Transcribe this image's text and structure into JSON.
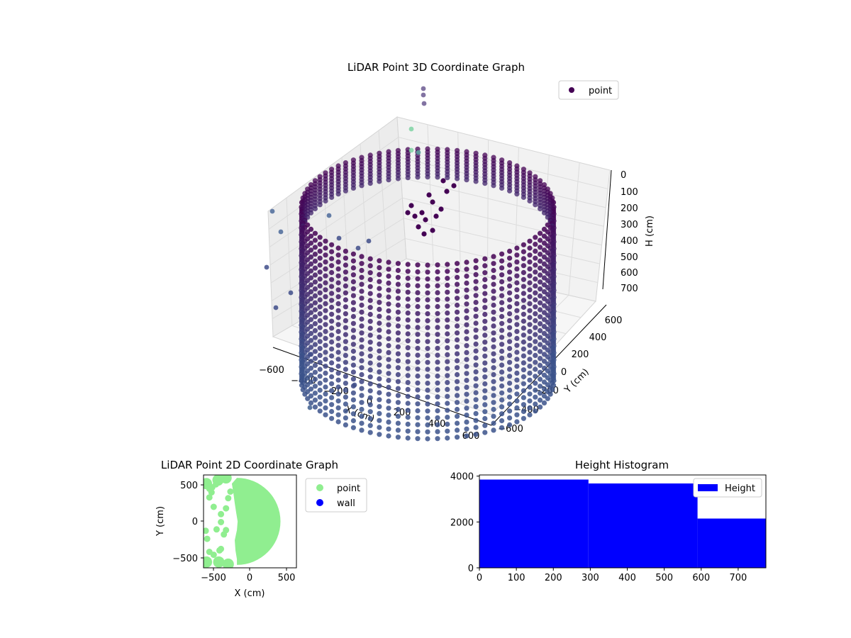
{
  "chart_data": [
    {
      "type": "scatter",
      "projection": "3d",
      "title": "LiDAR Point 3D Coordinate Graph",
      "xlabel": "X (cm)",
      "ylabel": "Y (cm)",
      "zlabel": "H (cm)",
      "x_ticks": [
        "−600",
        "−400",
        "−200",
        "0",
        "200",
        "400",
        "600"
      ],
      "y_ticks": [
        "−600",
        "−400",
        "−200",
        "0",
        "200",
        "400",
        "600"
      ],
      "z_ticks": [
        "0",
        "100",
        "200",
        "300",
        "400",
        "500",
        "600",
        "700"
      ],
      "xlim": [
        -600,
        600
      ],
      "ylim": [
        -600,
        600
      ],
      "zlim": [
        0,
        760
      ],
      "z_inverted": true,
      "legend": [
        {
          "label": "point",
          "color": "#440154"
        }
      ],
      "legend_position": "top-right",
      "grid": true,
      "colormap": "viridis",
      "ring_radius_cm": 600,
      "ring_height_cm": [
        0,
        760
      ],
      "colors": {
        "low": "#440154",
        "mid": "#3b528b",
        "high": "#7fd3a3"
      }
    },
    {
      "type": "scatter",
      "title": "LiDAR Point 2D Coordinate Graph",
      "xlabel": "X (cm)",
      "ylabel": "Y (cm)",
      "xlim": [
        -640,
        640
      ],
      "ylim": [
        -640,
        640
      ],
      "x_ticks": [
        "−500",
        "0",
        "500"
      ],
      "y_ticks": [
        "500",
        "0",
        "−500"
      ],
      "legend": [
        {
          "label": "point",
          "color": "#90ee90"
        },
        {
          "label": "wall",
          "color": "#0000ff"
        }
      ],
      "legend_position": "outside-right",
      "outliers": [
        {
          "x": -520,
          "y": 470
        },
        {
          "x": -470,
          "y": 510
        },
        {
          "x": -560,
          "y": 450
        },
        {
          "x": -500,
          "y": 200
        },
        {
          "x": -560,
          "y": 330
        },
        {
          "x": -530,
          "y": 400
        },
        {
          "x": -400,
          "y": 100
        },
        {
          "x": -400,
          "y": -10
        },
        {
          "x": -330,
          "y": -120
        },
        {
          "x": -460,
          "y": -110
        },
        {
          "x": -360,
          "y": -180
        },
        {
          "x": -610,
          "y": -130
        },
        {
          "x": -590,
          "y": -240
        },
        {
          "x": -400,
          "y": -380
        },
        {
          "x": -420,
          "y": -400
        },
        {
          "x": -500,
          "y": -460
        },
        {
          "x": -560,
          "y": -420
        },
        {
          "x": -300,
          "y": 320
        },
        {
          "x": -330,
          "y": 180
        },
        {
          "x": -270,
          "y": 410
        }
      ]
    },
    {
      "type": "bar",
      "title": "Height Histogram",
      "xlabel": "",
      "ylabel": "",
      "bins": [
        {
          "x0": 0,
          "x1": 295,
          "count": 3850
        },
        {
          "x0": 295,
          "x1": 590,
          "count": 3680
        },
        {
          "x0": 590,
          "x1": 775,
          "count": 2150
        }
      ],
      "xlim": [
        0,
        775
      ],
      "ylim": [
        0,
        4050
      ],
      "x_ticks": [
        "0",
        "100",
        "200",
        "300",
        "400",
        "500",
        "600",
        "700"
      ],
      "y_ticks": [
        "0",
        "2000",
        "4000"
      ],
      "legend": [
        {
          "label": "Height",
          "color": "#0000ff"
        }
      ],
      "legend_position": "top-right",
      "bar_color": "#0000ff"
    }
  ]
}
